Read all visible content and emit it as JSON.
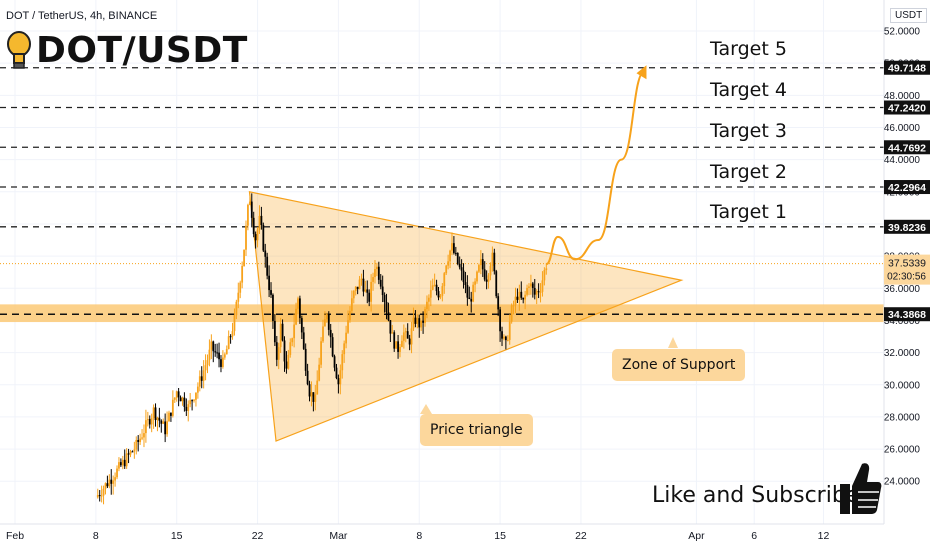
{
  "header": {
    "symbol_line": "DOT / TetherUS, 4h, BINANCE",
    "title": "DOT/USDT",
    "currency": "USDT",
    "bulb_icon": "lightbulb-icon"
  },
  "annotations": {
    "targets": [
      {
        "label": "Target 5",
        "price": 49.7148,
        "price_label": "49.7148"
      },
      {
        "label": "Target 4",
        "price": 47.242,
        "price_label": "47.2420"
      },
      {
        "label": "Target 3",
        "price": 44.7692,
        "price_label": "44.7692"
      },
      {
        "label": "Target 2",
        "price": 42.2964,
        "price_label": "42.2964"
      },
      {
        "label": "Target 1",
        "price": 39.8236,
        "price_label": "39.8236"
      }
    ],
    "support": {
      "price": 34.3868,
      "price_label": "34.3868",
      "band_low": 33.9,
      "band_high": 35.0
    },
    "support_label": "Zone of Support",
    "triangle_label": "Price triangle",
    "cta": "Like and Subscribe",
    "thumb_icon": "thumbs-up-icon",
    "current_price": "37.5339",
    "countdown": "02:30:56",
    "colors": {
      "accent": "#f7a21b",
      "band": "#fbc976",
      "bubble": "#fcd79c",
      "up": "#f7a21b",
      "down": "#000000"
    }
  },
  "chart_data": {
    "type": "candlestick",
    "title": "DOT/USDT",
    "ylim": [
      22.5,
      52.5
    ],
    "y_ticks": [
      "52.0000",
      "50.0000",
      "48.0000",
      "46.0000",
      "44.0000",
      "42.0000",
      "40.0000",
      "38.0000",
      "36.0000",
      "34.0000",
      "32.0000",
      "30.0000",
      "28.0000",
      "26.0000",
      "24.0000"
    ],
    "x_ticks": [
      "Feb",
      "8",
      "15",
      "22",
      "Mar",
      "8",
      "15",
      "22",
      "Apr",
      "6",
      "12"
    ],
    "x_tick_days": [
      0,
      7,
      14,
      21,
      28,
      35,
      42,
      49,
      59,
      64,
      70
    ],
    "price_path": [
      {
        "t": 7.0,
        "p": 23.0
      },
      {
        "t": 9.0,
        "p": 24.8
      },
      {
        "t": 10.5,
        "p": 26.2
      },
      {
        "t": 12.0,
        "p": 28.4
      },
      {
        "t": 13.0,
        "p": 27.2
      },
      {
        "t": 14.0,
        "p": 29.6
      },
      {
        "t": 15.0,
        "p": 28.6
      },
      {
        "t": 16.0,
        "p": 30.2
      },
      {
        "t": 17.0,
        "p": 32.3
      },
      {
        "t": 18.0,
        "p": 31.3
      },
      {
        "t": 19.0,
        "p": 34.0
      },
      {
        "t": 19.8,
        "p": 38.3
      },
      {
        "t": 20.3,
        "p": 41.8
      },
      {
        "t": 20.8,
        "p": 39.0
      },
      {
        "t": 21.2,
        "p": 40.3
      },
      {
        "t": 21.7,
        "p": 37.6
      },
      {
        "t": 22.2,
        "p": 35.2
      },
      {
        "t": 22.6,
        "p": 31.3
      },
      {
        "t": 23.0,
        "p": 33.6
      },
      {
        "t": 23.5,
        "p": 30.8
      },
      {
        "t": 24.0,
        "p": 33.1
      },
      {
        "t": 24.5,
        "p": 35.4
      },
      {
        "t": 25.0,
        "p": 32.1
      },
      {
        "t": 25.5,
        "p": 29.6
      },
      {
        "t": 26.0,
        "p": 29.0
      },
      {
        "t": 26.5,
        "p": 32.6
      },
      {
        "t": 27.0,
        "p": 34.6
      },
      {
        "t": 27.6,
        "p": 31.6
      },
      {
        "t": 28.0,
        "p": 30.1
      },
      {
        "t": 28.7,
        "p": 33.6
      },
      {
        "t": 29.3,
        "p": 35.6
      },
      {
        "t": 30.0,
        "p": 36.6
      },
      {
        "t": 30.6,
        "p": 35.1
      },
      {
        "t": 31.2,
        "p": 37.6
      },
      {
        "t": 31.8,
        "p": 36.1
      },
      {
        "t": 32.2,
        "p": 34.6
      },
      {
        "t": 32.6,
        "p": 33.1
      },
      {
        "t": 33.1,
        "p": 32.1
      },
      {
        "t": 33.6,
        "p": 33.3
      },
      {
        "t": 34.1,
        "p": 32.6
      },
      {
        "t": 34.6,
        "p": 34.1
      },
      {
        "t": 35.2,
        "p": 33.6
      },
      {
        "t": 35.7,
        "p": 35.1
      },
      {
        "t": 36.2,
        "p": 36.1
      },
      {
        "t": 36.8,
        "p": 35.6
      },
      {
        "t": 37.3,
        "p": 37.6
      },
      {
        "t": 37.8,
        "p": 38.6
      },
      {
        "t": 38.3,
        "p": 37.6
      },
      {
        "t": 38.8,
        "p": 36.6
      },
      {
        "t": 39.3,
        "p": 35.1
      },
      {
        "t": 39.8,
        "p": 36.1
      },
      {
        "t": 40.3,
        "p": 37.6
      },
      {
        "t": 40.8,
        "p": 36.6
      },
      {
        "t": 41.3,
        "p": 38.1
      },
      {
        "t": 41.7,
        "p": 35.6
      },
      {
        "t": 42.1,
        "p": 33.1
      },
      {
        "t": 42.5,
        "p": 32.4
      },
      {
        "t": 43.0,
        "p": 34.6
      },
      {
        "t": 43.5,
        "p": 35.6
      },
      {
        "t": 44.0,
        "p": 35.1
      },
      {
        "t": 44.5,
        "p": 36.4
      },
      {
        "t": 45.0,
        "p": 35.6
      },
      {
        "t": 45.5,
        "p": 36.1
      },
      {
        "t": 46.0,
        "p": 37.5
      }
    ],
    "projection_path": [
      {
        "t": 46.0,
        "p": 37.5
      },
      {
        "t": 47.0,
        "p": 39.2
      },
      {
        "t": 48.5,
        "p": 37.8
      },
      {
        "t": 50.5,
        "p": 39.0
      },
      {
        "t": 52.5,
        "p": 44.0
      },
      {
        "t": 54.5,
        "p": 49.5
      }
    ],
    "triangle": [
      {
        "t": 20.3,
        "p": 42.0
      },
      {
        "t": 22.6,
        "p": 26.5
      },
      {
        "t": 57.7,
        "p": 36.5
      }
    ]
  }
}
